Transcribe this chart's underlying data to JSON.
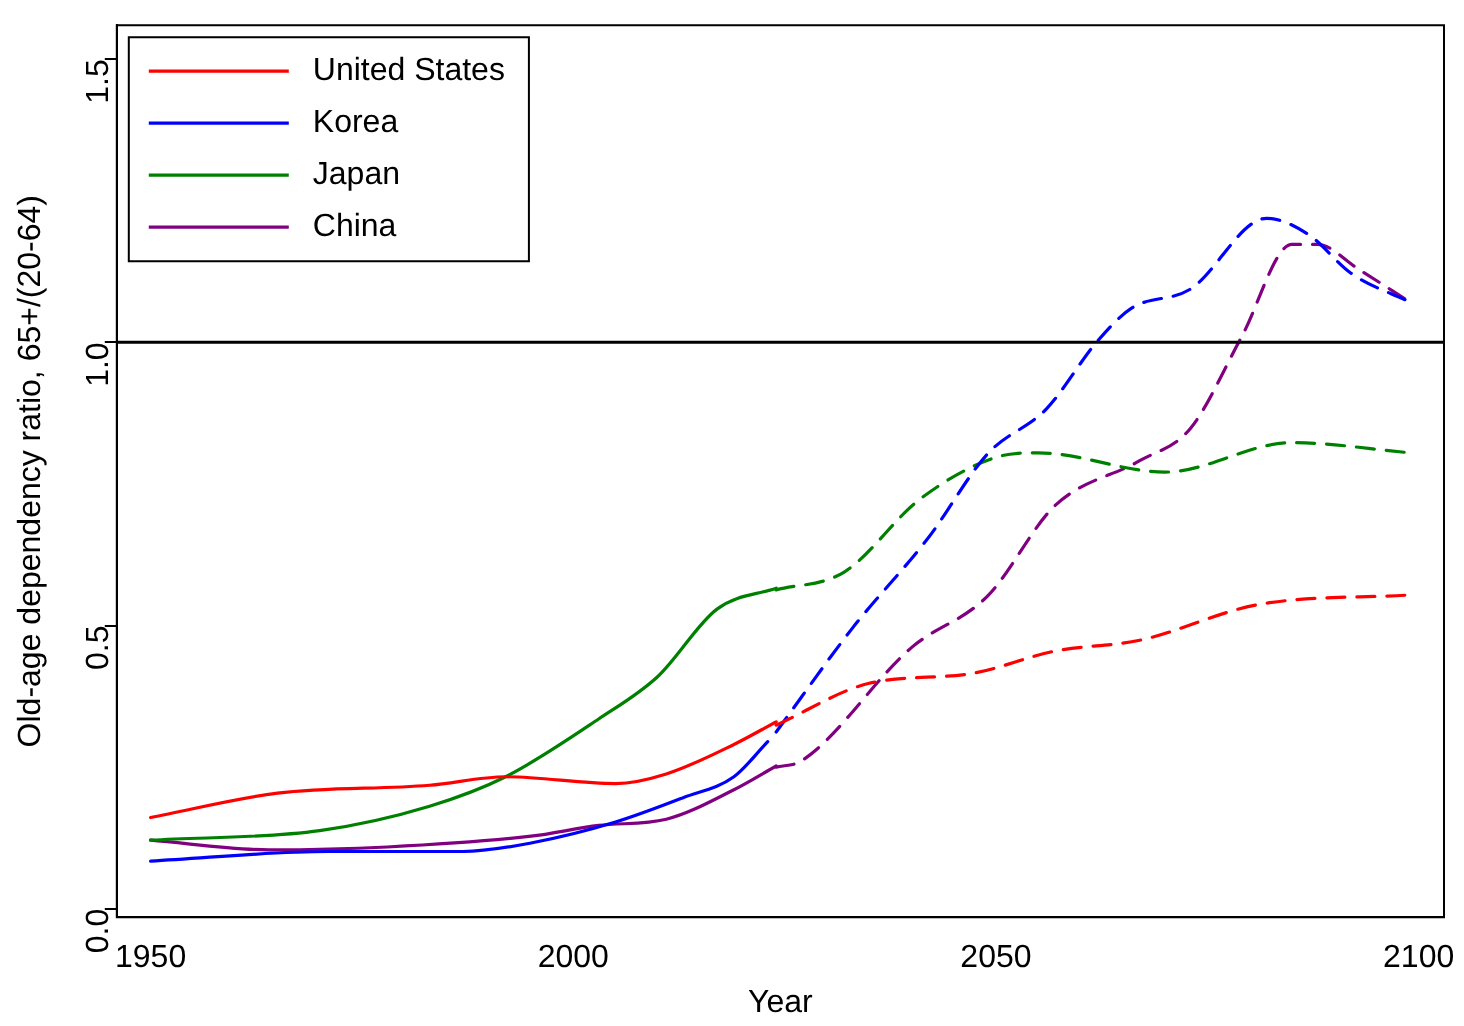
{
  "chart_data": {
    "type": "line",
    "xlabel": "Year",
    "ylabel": "Old-age dependency ratio, 65+/(20-64)",
    "xlim": [
      1946,
      2103
    ],
    "ylim": [
      -0.015,
      1.56
    ],
    "xticks": [
      1950,
      2000,
      2050,
      2100
    ],
    "yticks": [
      {
        "value": 0,
        "label": "0.0"
      },
      {
        "value": 0.5,
        "label": "0.5"
      },
      {
        "value": 1,
        "label": "1.0"
      },
      {
        "value": 1.5,
        "label": "1.5"
      }
    ],
    "grid": false,
    "legend": "top left",
    "marker": "none",
    "ref_lines": [
      {
        "axis": "y",
        "value": 1,
        "color": "#000000",
        "line_style": "solid"
      }
    ],
    "series": [
      {
        "name": "United States",
        "color": "#ff0000",
        "line_style": "solid",
        "x": [
          1950,
          1965,
          1983,
          1992,
          2005,
          2011,
          2019,
          2024
        ],
        "values": [
          0.161,
          0.204,
          0.218,
          0.233,
          0.221,
          0.238,
          0.29,
          0.33
        ]
      },
      {
        "name": "Korea",
        "color": "#0000ff",
        "line_style": "solid",
        "x": [
          1950,
          1971,
          1987,
          1995,
          2005,
          2013,
          2019,
          2023
        ],
        "values": [
          0.084,
          0.101,
          0.101,
          0.116,
          0.153,
          0.196,
          0.233,
          0.295
        ]
      },
      {
        "name": "Japan",
        "color": "#008000",
        "line_style": "solid",
        "x": [
          1950,
          1970,
          1983,
          1992,
          2003,
          2010,
          2017,
          2024
        ],
        "values": [
          0.121,
          0.138,
          0.181,
          0.233,
          0.335,
          0.41,
          0.529,
          0.566
        ]
      },
      {
        "name": "China",
        "color": "#800080",
        "line_style": "solid",
        "x": [
          1950,
          1964,
          1978,
          1995,
          2003,
          2011,
          2019,
          2024
        ],
        "values": [
          0.121,
          0.104,
          0.109,
          0.128,
          0.147,
          0.158,
          0.21,
          0.252
        ]
      },
      {
        "color": "#ff0000",
        "line_style": "dashed",
        "x": [
          2024,
          2035,
          2047,
          2057,
          2067,
          2081,
          2099
        ],
        "values": [
          0.324,
          0.398,
          0.415,
          0.455,
          0.474,
          0.537,
          0.554
        ]
      },
      {
        "color": "#0000ff",
        "line_style": "dashed",
        "x": [
          2024,
          2033,
          2042,
          2049,
          2056,
          2062,
          2066,
          2073,
          2082,
          2087,
          2092,
          2099
        ],
        "values": [
          0.312,
          0.495,
          0.655,
          0.803,
          0.883,
          1.002,
          1.06,
          1.094,
          1.219,
          1.19,
          1.122,
          1.071
        ]
      },
      {
        "color": "#008000",
        "line_style": "dashed",
        "x": [
          2024,
          2032,
          2041,
          2050,
          2055,
          2070,
          2085,
          2099
        ],
        "values": [
          0.563,
          0.594,
          0.723,
          0.797,
          0.805,
          0.771,
          0.823,
          0.805
        ]
      },
      {
        "color": "#800080",
        "line_style": "dashed",
        "x": [
          2024,
          2027,
          2040,
          2049,
          2057,
          2067,
          2073,
          2079,
          2085,
          2088,
          2093,
          2099
        ],
        "values": [
          0.25,
          0.261,
          0.461,
          0.552,
          0.712,
          0.791,
          0.848,
          1.008,
          1.173,
          1.173,
          1.128,
          1.071
        ]
      }
    ]
  }
}
